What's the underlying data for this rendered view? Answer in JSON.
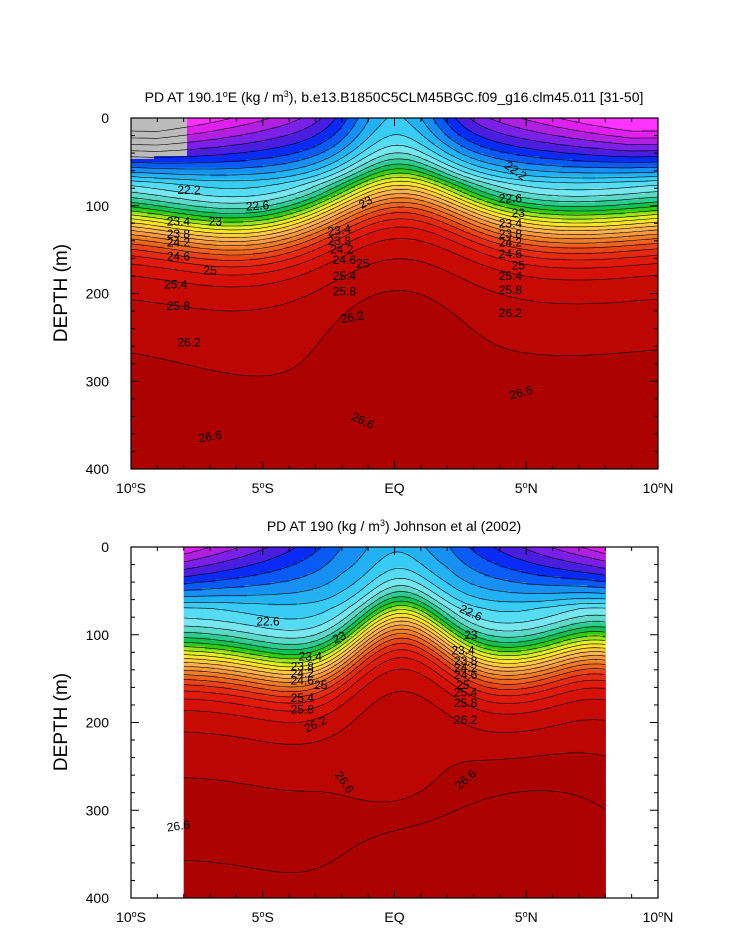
{
  "chart_data": [
    {
      "type": "contour",
      "title": "PD AT 190.1°E (kg / m³), b.e13.B1850C5CLM45BGC.f09_g16.clm45.011 [31-50]",
      "title_parts": {
        "pre": "PD AT 190.1",
        "deg": "o",
        "mid": "E (kg / m",
        "sup": "3",
        "post": "), b.e13.B1850C5CLM45BGC.f09_g16.clm45.011 [31-50]"
      },
      "ylabel": "DEPTH (m)",
      "xlabel": "",
      "xlim": [
        -10,
        10
      ],
      "ylim": [
        0,
        400
      ],
      "y_reversed": true,
      "x_ticks": [
        {
          "v": -10,
          "num": "10",
          "hemi": "S"
        },
        {
          "v": -5,
          "num": "5",
          "hemi": "S"
        },
        {
          "v": 0,
          "num": "EQ",
          "hemi": ""
        },
        {
          "v": 5,
          "num": "5",
          "hemi": "N"
        },
        {
          "v": 10,
          "num": "10",
          "hemi": "N"
        }
      ],
      "y_ticks": [
        "0",
        "100",
        "200",
        "300",
        "400"
      ],
      "data_extent_x": [
        -10,
        10
      ],
      "contour_levels": [
        21.0,
        21.2,
        21.4,
        21.6,
        21.8,
        22.0,
        22.2,
        22.4,
        22.6,
        22.8,
        23.0,
        23.2,
        23.4,
        23.6,
        23.8,
        24.0,
        24.2,
        24.4,
        24.6,
        24.8,
        25.0,
        25.2,
        25.4,
        25.6,
        25.8,
        26.0,
        26.2,
        26.4,
        26.6,
        26.8
      ],
      "contour_labels": [
        {
          "text": "22.2",
          "x": -7.8,
          "y": 82,
          "rot": 0
        },
        {
          "text": "22.6",
          "x": -5.2,
          "y": 100,
          "rot": -4
        },
        {
          "text": "23",
          "x": -6.8,
          "y": 118,
          "rot": 0
        },
        {
          "text": "23.4",
          "x": -8.2,
          "y": 118,
          "rot": 0
        },
        {
          "text": "23.8",
          "x": -8.2,
          "y": 132,
          "rot": 0
        },
        {
          "text": "24.2",
          "x": -8.2,
          "y": 142,
          "rot": 0
        },
        {
          "text": "24.6",
          "x": -8.2,
          "y": 158,
          "rot": 0
        },
        {
          "text": "25",
          "x": -7.0,
          "y": 174,
          "rot": 0
        },
        {
          "text": "25.4",
          "x": -8.3,
          "y": 190,
          "rot": 0
        },
        {
          "text": "25.8",
          "x": -8.2,
          "y": 214,
          "rot": 0
        },
        {
          "text": "26.2",
          "x": -7.8,
          "y": 256,
          "rot": 0
        },
        {
          "text": "26.6",
          "x": -7.0,
          "y": 363,
          "rot": -10
        },
        {
          "text": "23",
          "x": -1.1,
          "y": 96,
          "rot": -30
        },
        {
          "text": "23.4",
          "x": -2.1,
          "y": 128,
          "rot": -8
        },
        {
          "text": "23.8",
          "x": -2.1,
          "y": 140,
          "rot": 0
        },
        {
          "text": "24.2",
          "x": -2.0,
          "y": 150,
          "rot": 0
        },
        {
          "text": "24.6",
          "x": -1.9,
          "y": 162,
          "rot": 0
        },
        {
          "text": "25",
          "x": -1.2,
          "y": 166,
          "rot": 0
        },
        {
          "text": "25.4",
          "x": -1.9,
          "y": 180,
          "rot": 0
        },
        {
          "text": "25.8",
          "x": -1.9,
          "y": 198,
          "rot": 0
        },
        {
          "text": "26.2",
          "x": -1.6,
          "y": 227,
          "rot": -10
        },
        {
          "text": "26.6",
          "x": -1.2,
          "y": 345,
          "rot": 25
        },
        {
          "text": "22.2",
          "x": 4.6,
          "y": 60,
          "rot": 35
        },
        {
          "text": "22.6",
          "x": 4.4,
          "y": 92,
          "rot": 0
        },
        {
          "text": "23",
          "x": 4.7,
          "y": 108,
          "rot": 0
        },
        {
          "text": "23.4",
          "x": 4.4,
          "y": 120,
          "rot": 0
        },
        {
          "text": "23.8",
          "x": 4.4,
          "y": 132,
          "rot": 0
        },
        {
          "text": "24.2",
          "x": 4.4,
          "y": 142,
          "rot": 0
        },
        {
          "text": "24.6",
          "x": 4.4,
          "y": 155,
          "rot": 0
        },
        {
          "text": "25",
          "x": 4.7,
          "y": 168,
          "rot": 0
        },
        {
          "text": "25.4",
          "x": 4.4,
          "y": 180,
          "rot": 0
        },
        {
          "text": "25.8",
          "x": 4.4,
          "y": 196,
          "rot": 0
        },
        {
          "text": "26.2",
          "x": 4.4,
          "y": 222,
          "rot": 0
        },
        {
          "text": "26.6",
          "x": 4.8,
          "y": 313,
          "rot": -15
        }
      ]
    },
    {
      "type": "contour",
      "title": "PD AT 190 (kg / m³) Johnson et al (2002)",
      "title_parts": {
        "pre": "PD AT 190 (kg / m",
        "deg": "",
        "mid": "",
        "sup": "3",
        "post": ") Johnson et al (2002)"
      },
      "ylabel": "DEPTH (m)",
      "xlabel": "",
      "xlim": [
        -10,
        10
      ],
      "ylim": [
        0,
        400
      ],
      "y_reversed": true,
      "x_ticks": [
        {
          "v": -10,
          "num": "10",
          "hemi": "S"
        },
        {
          "v": -5,
          "num": "5",
          "hemi": "S"
        },
        {
          "v": 0,
          "num": "EQ",
          "hemi": ""
        },
        {
          "v": 5,
          "num": "5",
          "hemi": "N"
        },
        {
          "v": 10,
          "num": "10",
          "hemi": "N"
        }
      ],
      "y_ticks": [
        "0",
        "100",
        "200",
        "300",
        "400"
      ],
      "data_extent_x": [
        -8,
        8
      ],
      "contour_levels": [
        21.0,
        21.2,
        21.4,
        21.6,
        21.8,
        22.0,
        22.2,
        22.4,
        22.6,
        22.8,
        23.0,
        23.2,
        23.4,
        23.6,
        23.8,
        24.0,
        24.2,
        24.4,
        24.6,
        24.8,
        25.0,
        25.2,
        25.4,
        25.6,
        25.8,
        26.0,
        26.2,
        26.4,
        26.6,
        26.8,
        27.0
      ],
      "contour_labels": [
        {
          "text": "22.6",
          "x": -4.8,
          "y": 85,
          "rot": 0
        },
        {
          "text": "23",
          "x": -2.1,
          "y": 103,
          "rot": -25
        },
        {
          "text": "23.4",
          "x": -3.2,
          "y": 125,
          "rot": 0
        },
        {
          "text": "23.8",
          "x": -3.5,
          "y": 136,
          "rot": 0
        },
        {
          "text": "24.2",
          "x": -3.5,
          "y": 144,
          "rot": 0
        },
        {
          "text": "24.6",
          "x": -3.5,
          "y": 152,
          "rot": 0
        },
        {
          "text": "25",
          "x": -2.8,
          "y": 157,
          "rot": 0
        },
        {
          "text": "25.4",
          "x": -3.5,
          "y": 172,
          "rot": 0
        },
        {
          "text": "25.8",
          "x": -3.5,
          "y": 185,
          "rot": 0
        },
        {
          "text": "26.2",
          "x": -3.0,
          "y": 202,
          "rot": -25
        },
        {
          "text": "26.6",
          "x": -8.2,
          "y": 318,
          "rot": -8
        },
        {
          "text": "26.6",
          "x": -1.9,
          "y": 268,
          "rot": 55
        },
        {
          "text": "22.6",
          "x": 2.9,
          "y": 75,
          "rot": 25
        },
        {
          "text": "23",
          "x": 2.9,
          "y": 100,
          "rot": 0
        },
        {
          "text": "23.4",
          "x": 2.6,
          "y": 118,
          "rot": 0
        },
        {
          "text": "23.8",
          "x": 2.7,
          "y": 130,
          "rot": 0
        },
        {
          "text": "24.2",
          "x": 2.7,
          "y": 138,
          "rot": 0
        },
        {
          "text": "24.6",
          "x": 2.7,
          "y": 146,
          "rot": 0
        },
        {
          "text": "25",
          "x": 2.6,
          "y": 157,
          "rot": 0
        },
        {
          "text": "25.4",
          "x": 2.7,
          "y": 166,
          "rot": 0
        },
        {
          "text": "25.8",
          "x": 2.7,
          "y": 178,
          "rot": 0
        },
        {
          "text": "26.2",
          "x": 2.7,
          "y": 197,
          "rot": 0
        },
        {
          "text": "26.6",
          "x": 2.7,
          "y": 265,
          "rot": -40
        }
      ]
    }
  ],
  "colors": {
    "missing": "#bbbbbb",
    "palette": [
      "#ff33ff",
      "#e020f0",
      "#b020e0",
      "#7a20e8",
      "#4a1ee0",
      "#0a2af5",
      "#0a5af5",
      "#1790f2",
      "#22b2f4",
      "#38ccf5",
      "#55dcf2",
      "#78e6ee",
      "#5ed8c8",
      "#2ecb92",
      "#10c050",
      "#30cc12",
      "#9ae21e",
      "#e0ee24",
      "#ffe52a",
      "#ffca3e",
      "#ffb254",
      "#f89a3e",
      "#f07e28",
      "#ec6420",
      "#e84418",
      "#e42a12",
      "#e01a0c",
      "#d61208",
      "#c80a05",
      "#bc0603",
      "#ac0202"
    ]
  }
}
